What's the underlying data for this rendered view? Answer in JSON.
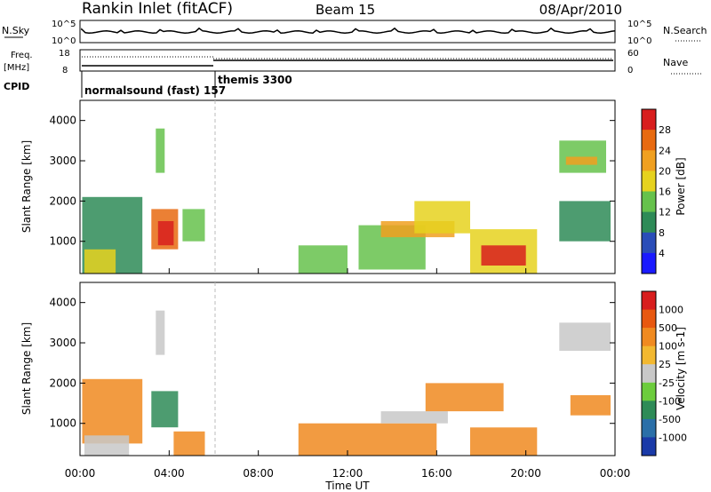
{
  "header": {
    "station": "Rankin Inlet (fitACF)",
    "beam": "Beam 15",
    "date": "08/Apr/2010"
  },
  "panels": {
    "nsky": {
      "label": "N.Sky",
      "left_ticks": [
        "10^5",
        "10^0"
      ],
      "right_ticks": [
        "10^5",
        "10^0"
      ],
      "right_label": "N.Search"
    },
    "freq": {
      "label_line1": "Freq.",
      "label_line2": "[MHz]",
      "left_ticks": [
        "18",
        "8"
      ],
      "right_ticks": [
        "60",
        "0"
      ],
      "right_label": "Nave"
    },
    "cpid": {
      "label": "CPID",
      "segments": [
        "normalsound (fast) 157",
        "themis 3300"
      ]
    }
  },
  "colors": {
    "power": [
      "#1a1aff",
      "#2a4db8",
      "#2e8b57",
      "#66c24c",
      "#e6d21e",
      "#f0a020",
      "#e86a10",
      "#d81e1e"
    ],
    "velocity": [
      "#1a3aa8",
      "#2a6fa8",
      "#2e8b57",
      "#6ccc3c",
      "#c8c8c8",
      "#f2b830",
      "#f08a20",
      "#e85810",
      "#d81e1e"
    ]
  },
  "chart_data": [
    {
      "type": "heatmap",
      "name": "power",
      "ylabel": "Slant Range [km]",
      "y_ticks": [
        "4000",
        "3000",
        "2000",
        "1000"
      ],
      "x_ticks": [
        "00:00",
        "04:00",
        "08:00",
        "12:00",
        "16:00",
        "20:00",
        "00:00"
      ],
      "colorbar": {
        "label": "Power [dB]",
        "ticks": [
          "28",
          "24",
          "20",
          "16",
          "12",
          "8",
          "4"
        ]
      },
      "regions": [
        {
          "t0": 0.1,
          "t1": 2.8,
          "r0": 200,
          "r1": 2100,
          "level": 2
        },
        {
          "t0": 0.2,
          "t1": 1.6,
          "r0": 200,
          "r1": 800,
          "level": 4
        },
        {
          "t0": 3.2,
          "t1": 4.4,
          "r0": 800,
          "r1": 1800,
          "level": 6
        },
        {
          "t0": 3.5,
          "t1": 4.2,
          "r0": 900,
          "r1": 1500,
          "level": 7
        },
        {
          "t0": 3.4,
          "t1": 3.8,
          "r0": 2700,
          "r1": 3800,
          "level": 3
        },
        {
          "t0": 4.6,
          "t1": 5.6,
          "r0": 1000,
          "r1": 1800,
          "level": 3
        },
        {
          "t0": 9.8,
          "t1": 12.0,
          "r0": 200,
          "r1": 900,
          "level": 3
        },
        {
          "t0": 12.5,
          "t1": 15.5,
          "r0": 300,
          "r1": 1400,
          "level": 3
        },
        {
          "t0": 13.5,
          "t1": 16.8,
          "r0": 1100,
          "r1": 1500,
          "level": 5
        },
        {
          "t0": 15.0,
          "t1": 17.5,
          "r0": 1200,
          "r1": 2000,
          "level": 4
        },
        {
          "t0": 17.5,
          "t1": 20.5,
          "r0": 200,
          "r1": 1300,
          "level": 4
        },
        {
          "t0": 18.0,
          "t1": 20.0,
          "r0": 400,
          "r1": 900,
          "level": 7
        },
        {
          "t0": 21.5,
          "t1": 23.6,
          "r0": 2700,
          "r1": 3500,
          "level": 3
        },
        {
          "t0": 21.8,
          "t1": 23.2,
          "r0": 2900,
          "r1": 3100,
          "level": 5
        },
        {
          "t0": 21.5,
          "t1": 23.8,
          "r0": 1000,
          "r1": 2000,
          "level": 2
        }
      ]
    },
    {
      "type": "heatmap",
      "name": "velocity",
      "ylabel": "Slant Range [km]",
      "y_ticks": [
        "4000",
        "3000",
        "2000",
        "1000"
      ],
      "x_ticks": [
        "00:00",
        "04:00",
        "08:00",
        "12:00",
        "16:00",
        "20:00",
        "00:00"
      ],
      "xlabel": "Time UT",
      "colorbar": {
        "label": "Velocity [m s-1]",
        "ticks": [
          "1000",
          "500",
          "100",
          "25",
          "-25",
          "-100",
          "-500",
          "-1000"
        ]
      },
      "regions": [
        {
          "t0": 0.1,
          "t1": 2.8,
          "r0": 500,
          "r1": 2100,
          "level": 6
        },
        {
          "t0": 0.2,
          "t1": 2.2,
          "r0": 200,
          "r1": 700,
          "level": 4
        },
        {
          "t0": 3.2,
          "t1": 4.4,
          "r0": 900,
          "r1": 1800,
          "level": 2
        },
        {
          "t0": 3.4,
          "t1": 3.8,
          "r0": 2700,
          "r1": 3800,
          "level": 4
        },
        {
          "t0": 4.2,
          "t1": 5.6,
          "r0": 200,
          "r1": 800,
          "level": 6
        },
        {
          "t0": 9.8,
          "t1": 16.0,
          "r0": 200,
          "r1": 1000,
          "level": 6
        },
        {
          "t0": 13.5,
          "t1": 16.5,
          "r0": 1000,
          "r1": 1300,
          "level": 4
        },
        {
          "t0": 15.5,
          "t1": 19.0,
          "r0": 1300,
          "r1": 2000,
          "level": 6
        },
        {
          "t0": 17.5,
          "t1": 20.5,
          "r0": 200,
          "r1": 900,
          "level": 6
        },
        {
          "t0": 21.5,
          "t1": 23.8,
          "r0": 2800,
          "r1": 3500,
          "level": 4
        },
        {
          "t0": 22.0,
          "t1": 23.8,
          "r0": 1200,
          "r1": 1700,
          "level": 6
        }
      ]
    }
  ]
}
